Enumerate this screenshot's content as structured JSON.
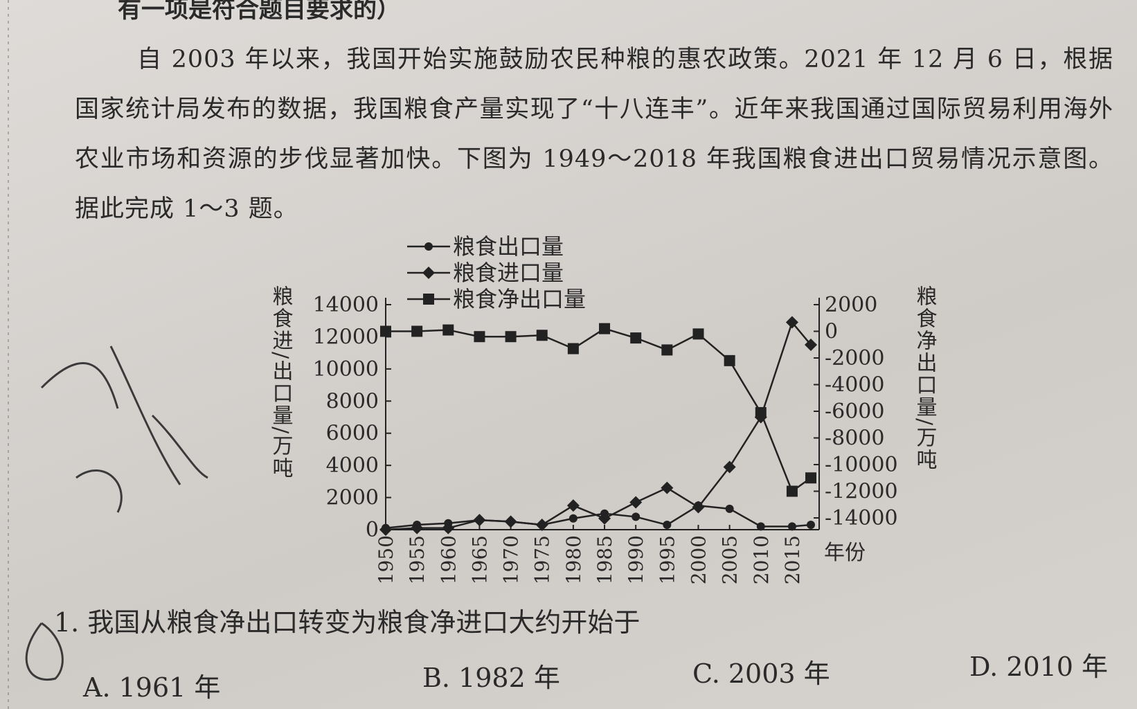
{
  "header": {
    "text": "有一项是符合题目要求的）"
  },
  "paragraph": {
    "text": "自 2003 年以来，我国开始实施鼓励农民种粮的惠农政策。2021 年 12 月 6 日，根据国家统计局发布的数据，我国粮食产量实现了“十八连丰”。近年来我国通过国际贸易利用海外农业市场和资源的步伐显著加快。下图为 1949～2018 年我国粮食进出口贸易情况示意图。据此完成 1～3 题。"
  },
  "chart_data": {
    "type": "line",
    "y_label": "粮食进/出口量/万吨",
    "y2_label": "粮食净出口量/万吨",
    "x_label": "年份",
    "x": [
      1950,
      1955,
      1960,
      1965,
      1970,
      1975,
      1980,
      1985,
      1990,
      1995,
      2000,
      2005,
      2010,
      2015,
      2018
    ],
    "xlim": [
      1950,
      2018
    ],
    "xticks": [
      1950,
      1955,
      1960,
      1965,
      1970,
      1975,
      1980,
      1985,
      1990,
      1995,
      2000,
      2005,
      2010,
      2015
    ],
    "ylim": [
      0,
      14000
    ],
    "yticks": [
      0,
      2000,
      4000,
      6000,
      8000,
      10000,
      12000,
      14000
    ],
    "y2lim": [
      -14000,
      2000
    ],
    "y2ticks": [
      -14000,
      -12000,
      -10000,
      -8000,
      -6000,
      -4000,
      -2000,
      0,
      2000
    ],
    "series": [
      {
        "name": "粮食出口量",
        "color": "#222222",
        "marker": "circle",
        "values": [
          100,
          300,
          400,
          600,
          500,
          300,
          700,
          1000,
          800,
          300,
          1500,
          1300,
          200,
          200,
          300
        ]
      },
      {
        "name": "粮食进口量",
        "color": "#222222",
        "marker": "diamond",
        "values": [
          0,
          100,
          100,
          600,
          500,
          300,
          1500,
          700,
          1700,
          2600,
          1400,
          3900,
          7000,
          12900,
          11500
        ]
      },
      {
        "name": "粮食净出口量",
        "color": "#222222",
        "marker": "square",
        "axis": "y2",
        "values": [
          0,
          0,
          100,
          -400,
          -400,
          -300,
          -1300,
          200,
          -500,
          -1400,
          -200,
          -2200,
          -6100,
          -12000,
          -11000
        ]
      }
    ]
  },
  "question": {
    "text": "1. 我国从粮食净出口转变为粮食净进口大约开始于",
    "options": [
      "A. 1961 年",
      "B. 1982 年",
      "C. 2003 年",
      "D. 2010 年"
    ]
  }
}
